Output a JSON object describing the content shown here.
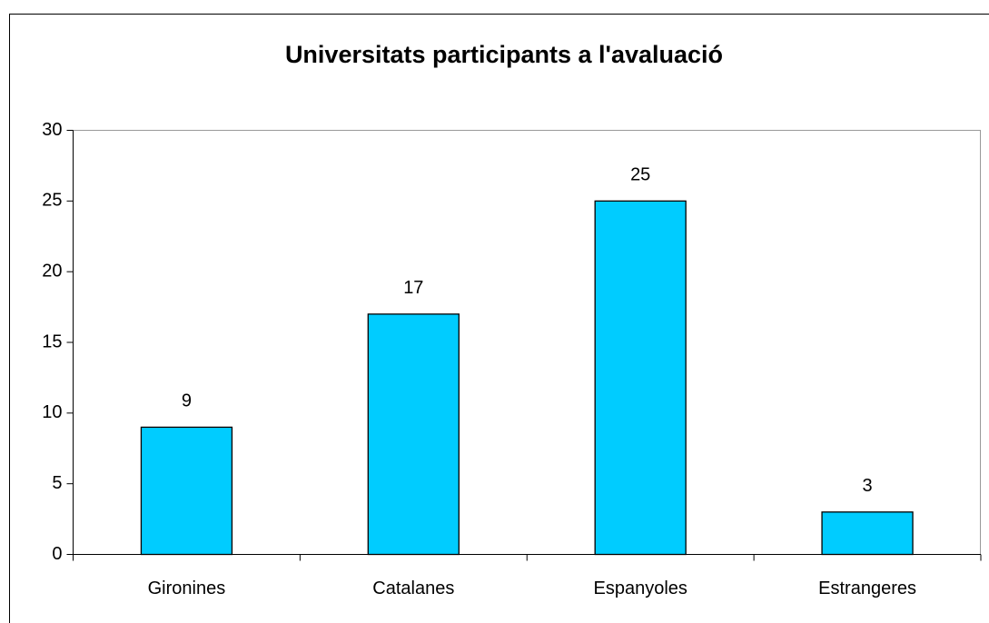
{
  "chart_data": {
    "type": "bar",
    "title": "Universitats participants a l'avaluació",
    "categories": [
      "Gironines",
      "Catalanes",
      "Espanyoles",
      "Estrangeres"
    ],
    "values": [
      9,
      17,
      25,
      3
    ],
    "color": "#00ccff",
    "ylim": [
      0,
      30
    ],
    "yticks": [
      0,
      5,
      10,
      15,
      20,
      25,
      30
    ],
    "grid": false
  }
}
